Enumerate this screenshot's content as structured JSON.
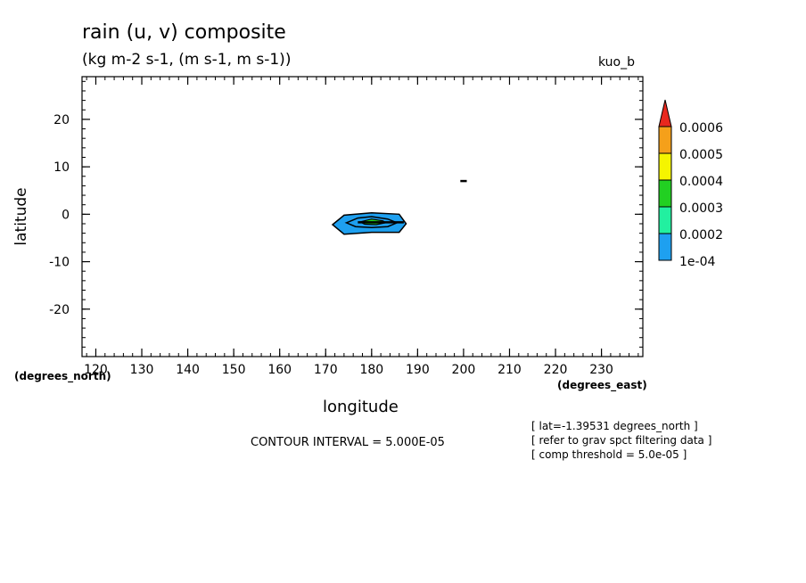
{
  "header": {
    "title": "rain (u, v) composite",
    "units": "(kg m-2 s-1, (m s-1, m s-1))",
    "run_name": "kuo_b"
  },
  "footer": {
    "contour_interval": "CONTOUR INTERVAL = 5.000E-05",
    "notes": [
      "[ lat=-1.39531 degrees_north ]",
      "[ refer to grav spct filtering data ]",
      "[ comp threshold = 5.0e-05 ]"
    ]
  },
  "chart_data": {
    "type": "contour",
    "title": "rain (u, v) composite",
    "subtitle": "(kg m-2 s-1, (m s-1, m s-1))",
    "xlabel": "longitude",
    "ylabel": "latitude",
    "x_units": "(degrees_east)",
    "y_units": "(degrees_north)",
    "xlim": [
      117,
      239
    ],
    "ylim": [
      -30,
      29
    ],
    "x_ticks": [
      "120",
      "130",
      "140",
      "150",
      "160",
      "170",
      "180",
      "190",
      "200",
      "210",
      "220",
      "230"
    ],
    "x_tick_values": [
      120,
      130,
      140,
      150,
      160,
      170,
      180,
      190,
      200,
      210,
      220,
      230
    ],
    "y_ticks": [
      "20",
      "10",
      "0",
      "-10",
      "-20"
    ],
    "y_tick_values": [
      20,
      10,
      0,
      -10,
      -20
    ],
    "contour_levels": [
      0.0001,
      0.0002,
      0.0003,
      0.0004,
      0.0005,
      0.0006
    ],
    "colorbar": {
      "labels": [
        "0.0006",
        "0.0005",
        "0.0004",
        "0.0003",
        "0.0002",
        "1e-04"
      ],
      "colors": [
        "#e8281e",
        "#f5a01a",
        "#f5f500",
        "#22d022",
        "#22f0a0",
        "#1ea0f0"
      ],
      "over_color": "#e8281e"
    },
    "features": [
      {
        "name": "rain maximum",
        "center": [
          180,
          -1.4
        ],
        "outer_polygon": [
          [
            171.5,
            -2.2
          ],
          [
            174,
            -0.2
          ],
          [
            180,
            0.3
          ],
          [
            186,
            0
          ],
          [
            187.5,
            -2
          ],
          [
            186,
            -3.8
          ],
          [
            180,
            -3.8
          ],
          [
            174,
            -4.2
          ],
          [
            171.5,
            -2.2
          ]
        ],
        "middle_polygon": [
          [
            174.5,
            -1.8
          ],
          [
            177,
            -0.8
          ],
          [
            180,
            -0.5
          ],
          [
            183.5,
            -1
          ],
          [
            185.5,
            -1.8
          ],
          [
            183.5,
            -2.6
          ],
          [
            180,
            -2.8
          ],
          [
            176.5,
            -2.6
          ],
          [
            174.5,
            -1.8
          ]
        ],
        "inner_polygon": [
          [
            177.5,
            -1.6
          ],
          [
            180,
            -1
          ],
          [
            182.5,
            -1.4
          ],
          [
            183,
            -1.8
          ],
          [
            181,
            -2.2
          ],
          [
            178.5,
            -2.1
          ],
          [
            177.5,
            -1.6
          ]
        ],
        "outer_color": "#1ea0f0",
        "inner_color": "#22d022"
      },
      {
        "name": "small contour",
        "center": [
          200,
          7
        ]
      }
    ]
  }
}
